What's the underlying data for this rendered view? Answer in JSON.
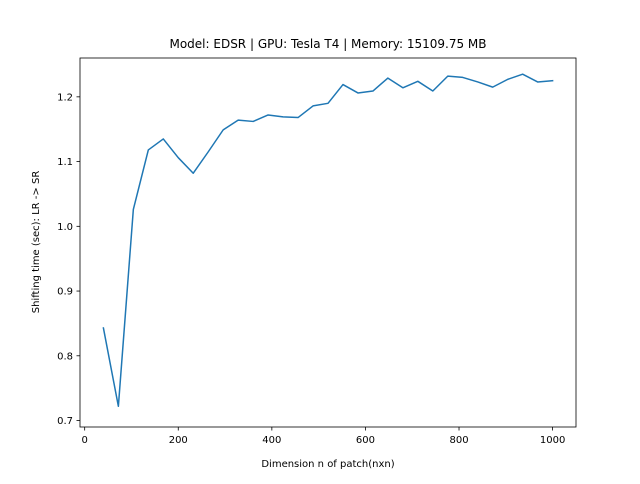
{
  "chart_data": {
    "type": "line",
    "title": "Model: EDSR | GPU: Tesla T4 | Memory: 15109.75 MB",
    "xlabel": "Dimension n of patch(nxn)",
    "ylabel": "Shifting time (sec): LR -> SR",
    "xlim": [
      -10,
      1050
    ],
    "ylim": [
      0.69,
      1.26
    ],
    "xticks": [
      0,
      200,
      400,
      600,
      800,
      1000
    ],
    "xtick_labels": [
      "0",
      "200",
      "400",
      "600",
      "800",
      "1000"
    ],
    "yticks": [
      0.7,
      0.8,
      0.9,
      1.0,
      1.1,
      1.2
    ],
    "ytick_labels": [
      "0.7",
      "0.8",
      "0.9",
      "1.0",
      "1.1",
      "1.2"
    ],
    "grid": false,
    "legend": "none",
    "series": [
      {
        "color": "#1f77b4",
        "x": [
          40,
          72,
          104,
          136,
          168,
          200,
          232,
          264,
          296,
          328,
          360,
          392,
          424,
          456,
          488,
          520,
          552,
          584,
          616,
          648,
          680,
          712,
          744,
          776,
          808,
          840,
          872,
          904,
          936,
          968,
          1000
        ],
        "y": [
          0.843,
          0.722,
          1.026,
          1.118,
          1.135,
          1.106,
          1.082,
          1.115,
          1.149,
          1.164,
          1.162,
          1.172,
          1.169,
          1.168,
          1.186,
          1.19,
          1.219,
          1.206,
          1.209,
          1.229,
          1.214,
          1.224,
          1.209,
          1.232,
          1.23,
          1.223,
          1.215,
          1.227,
          1.235,
          1.223,
          1.225
        ]
      }
    ]
  }
}
